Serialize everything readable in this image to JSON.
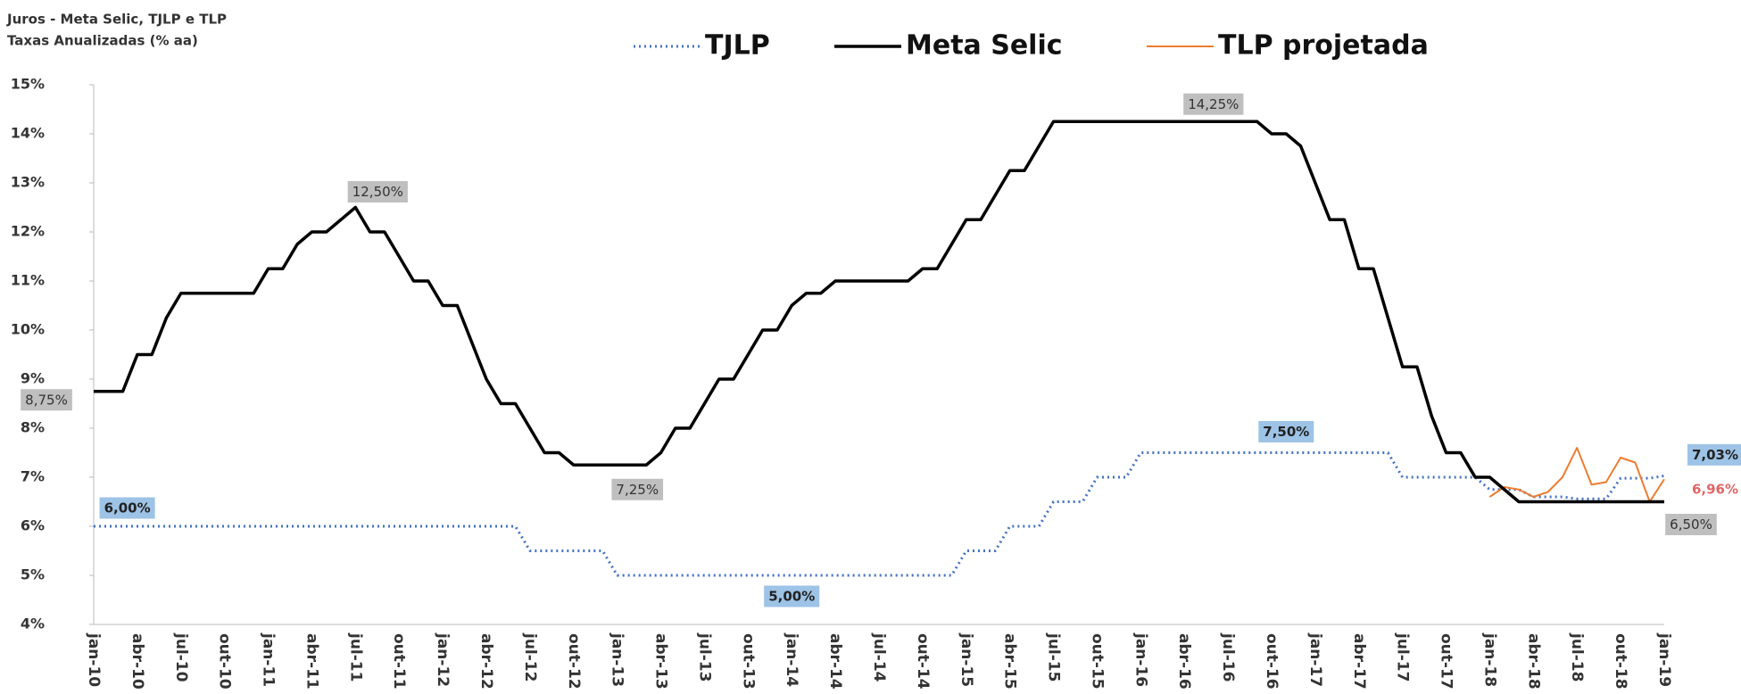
{
  "chart_data": {
    "type": "line",
    "title": "Juros - Meta Selic, TJLP e TLP",
    "subtitle": "Taxas Anualizadas (% aa)",
    "categories": [
      "jan-10",
      null,
      null,
      "abr-10",
      null,
      null,
      "jul-10",
      null,
      null,
      "out-10",
      null,
      null,
      "jan-11",
      null,
      null,
      "abr-11",
      null,
      null,
      "jul-11",
      null,
      null,
      "out-11",
      null,
      null,
      "jan-12",
      null,
      null,
      "abr-12",
      null,
      null,
      "jul-12",
      null,
      null,
      "out-12",
      null,
      null,
      "jan-13",
      null,
      null,
      "abr-13",
      null,
      null,
      "jul-13",
      null,
      null,
      "out-13",
      null,
      null,
      "jan-14",
      null,
      null,
      "abr-14",
      null,
      null,
      "jul-14",
      null,
      null,
      "out-14",
      null,
      null,
      "jan-15",
      null,
      null,
      "abr-15",
      null,
      null,
      "jul-15",
      null,
      null,
      "out-15",
      null,
      null,
      "jan-16",
      null,
      null,
      "abr-16",
      null,
      null,
      "jul-16",
      null,
      null,
      "out-16",
      null,
      null,
      "jan-17",
      null,
      null,
      "abr-17",
      null,
      null,
      "jul-17",
      null,
      null,
      "out-17",
      null,
      null,
      "jan-18",
      null,
      null,
      "abr-18",
      null,
      null,
      "jul-18",
      null,
      null,
      "out-18",
      null,
      null,
      "jan-19"
    ],
    "series": [
      {
        "name": "Meta Selic",
        "color": "#000000",
        "style": "solid",
        "values": [
          8.75,
          8.75,
          8.75,
          9.5,
          9.5,
          10.25,
          10.75,
          10.75,
          10.75,
          10.75,
          10.75,
          10.75,
          11.25,
          11.25,
          11.75,
          12,
          12,
          12.25,
          12.5,
          12,
          12,
          11.5,
          11,
          11,
          10.5,
          10.5,
          9.75,
          9,
          8.5,
          8.5,
          8,
          7.5,
          7.5,
          7.25,
          7.25,
          7.25,
          7.25,
          7.25,
          7.25,
          7.5,
          8,
          8,
          8.5,
          9,
          9,
          9.5,
          10,
          10,
          10.5,
          10.75,
          10.75,
          11,
          11,
          11,
          11,
          11,
          11,
          11.25,
          11.25,
          11.75,
          12.25,
          12.25,
          12.75,
          13.25,
          13.25,
          13.75,
          14.25,
          14.25,
          14.25,
          14.25,
          14.25,
          14.25,
          14.25,
          14.25,
          14.25,
          14.25,
          14.25,
          14.25,
          14.25,
          14.25,
          14.25,
          14,
          14,
          13.75,
          13,
          12.25,
          12.25,
          11.25,
          11.25,
          10.25,
          9.25,
          9.25,
          8.25,
          7.5,
          7.5,
          7,
          7,
          6.75,
          6.5,
          6.5,
          6.5,
          6.5,
          6.5,
          6.5,
          6.5,
          6.5,
          6.5,
          6.5,
          6.5
        ],
        "value_labels": [
          "8,75%",
          null,
          null,
          null,
          null,
          null,
          null,
          null,
          null,
          null,
          null,
          null,
          null,
          null,
          null,
          null,
          null,
          null,
          "12,50%",
          null,
          null,
          null,
          null,
          null,
          null,
          null,
          null,
          null,
          null,
          null,
          null,
          null,
          null,
          null,
          null,
          null,
          null,
          null,
          "7,25%",
          null,
          null,
          null,
          null,
          null,
          null,
          null,
          null,
          null,
          null,
          null,
          null,
          null,
          null,
          null,
          null,
          null,
          null,
          null,
          null,
          null,
          null,
          null,
          null,
          null,
          null,
          null,
          null,
          null,
          null,
          null,
          null,
          null,
          null,
          null,
          null,
          null,
          null,
          "14,25%",
          null,
          null,
          null,
          null,
          null,
          null,
          null,
          null,
          null,
          null,
          null,
          null,
          null,
          null,
          null,
          null,
          null,
          null,
          null,
          null,
          null,
          null,
          null,
          null,
          null,
          null,
          null,
          null,
          null,
          null,
          "6,50%"
        ]
      },
      {
        "name": "TJLP",
        "color": "#4472c4",
        "style": "dotted",
        "values": [
          6,
          6,
          6,
          6,
          6,
          6,
          6,
          6,
          6,
          6,
          6,
          6,
          6,
          6,
          6,
          6,
          6,
          6,
          6,
          6,
          6,
          6,
          6,
          6,
          6,
          6,
          6,
          6,
          6,
          6,
          5.5,
          5.5,
          5.5,
          5.5,
          5.5,
          5.5,
          5,
          5,
          5,
          5,
          5,
          5,
          5,
          5,
          5,
          5,
          5,
          5,
          5,
          5,
          5,
          5,
          5,
          5,
          5,
          5,
          5,
          5,
          5,
          5,
          5.5,
          5.5,
          5.5,
          6,
          6,
          6,
          6.5,
          6.5,
          6.5,
          7,
          7,
          7,
          7.5,
          7.5,
          7.5,
          7.5,
          7.5,
          7.5,
          7.5,
          7.5,
          7.5,
          7.5,
          7.5,
          7.5,
          7.5,
          7.5,
          7.5,
          7.5,
          7.5,
          7.5,
          7,
          7,
          7,
          7,
          7,
          7,
          6.75,
          6.75,
          6.75,
          6.6,
          6.6,
          6.6,
          6.56,
          6.56,
          6.56,
          6.98,
          6.98,
          6.98,
          7.03
        ],
        "value_labels": [
          null,
          null,
          "6,00%",
          null,
          null,
          null,
          null,
          null,
          null,
          null,
          null,
          null,
          null,
          null,
          null,
          null,
          null,
          null,
          null,
          null,
          null,
          null,
          null,
          null,
          null,
          null,
          null,
          null,
          null,
          null,
          null,
          null,
          null,
          null,
          null,
          null,
          null,
          null,
          null,
          null,
          null,
          null,
          null,
          null,
          null,
          null,
          null,
          null,
          "5,00%",
          null,
          null,
          null,
          null,
          null,
          null,
          null,
          null,
          null,
          null,
          null,
          null,
          null,
          null,
          null,
          null,
          null,
          null,
          null,
          null,
          null,
          null,
          null,
          null,
          null,
          null,
          null,
          null,
          null,
          null,
          null,
          null,
          null,
          "7,50%",
          null,
          null,
          null,
          null,
          null,
          null,
          null,
          null,
          null,
          null,
          null,
          null,
          null,
          null,
          null,
          null,
          null,
          null,
          null,
          null,
          null,
          null,
          null,
          null,
          null,
          "7,03%"
        ]
      },
      {
        "name": "TLP projetada",
        "color": "#ed7d31",
        "style": "thin",
        "values": [
          null,
          null,
          null,
          null,
          null,
          null,
          null,
          null,
          null,
          null,
          null,
          null,
          null,
          null,
          null,
          null,
          null,
          null,
          null,
          null,
          null,
          null,
          null,
          null,
          null,
          null,
          null,
          null,
          null,
          null,
          null,
          null,
          null,
          null,
          null,
          null,
          null,
          null,
          null,
          null,
          null,
          null,
          null,
          null,
          null,
          null,
          null,
          null,
          null,
          null,
          null,
          null,
          null,
          null,
          null,
          null,
          null,
          null,
          null,
          null,
          null,
          null,
          null,
          null,
          null,
          null,
          null,
          null,
          null,
          null,
          null,
          null,
          null,
          null,
          null,
          null,
          null,
          null,
          null,
          null,
          null,
          null,
          null,
          null,
          null,
          null,
          null,
          null,
          null,
          null,
          null,
          null,
          null,
          null,
          null,
          null,
          6.6,
          6.8,
          6.75,
          6.6,
          6.7,
          7.0,
          7.6,
          6.85,
          6.9,
          7.4,
          7.3,
          6.5,
          6.96
        ],
        "value_labels": [
          null,
          null,
          null,
          null,
          null,
          null,
          null,
          null,
          null,
          null,
          null,
          null,
          null,
          null,
          null,
          null,
          null,
          null,
          null,
          null,
          null,
          null,
          null,
          null,
          null,
          null,
          null,
          null,
          null,
          null,
          null,
          null,
          null,
          null,
          null,
          null,
          null,
          null,
          null,
          null,
          null,
          null,
          null,
          null,
          null,
          null,
          null,
          null,
          null,
          null,
          null,
          null,
          null,
          null,
          null,
          null,
          null,
          null,
          null,
          null,
          null,
          null,
          null,
          null,
          null,
          null,
          null,
          null,
          null,
          null,
          null,
          null,
          null,
          null,
          null,
          null,
          null,
          null,
          null,
          null,
          null,
          null,
          null,
          null,
          null,
          null,
          null,
          null,
          null,
          null,
          null,
          null,
          null,
          null,
          null,
          null,
          null,
          null,
          null,
          null,
          null,
          null,
          null,
          null,
          null,
          null,
          null,
          null,
          "6,96%"
        ]
      }
    ],
    "legend_order": [
      1,
      0,
      2
    ],
    "ylim": [
      4,
      15
    ],
    "yticks": [
      {
        "value": 4,
        "label": "4%"
      },
      {
        "value": 5,
        "label": "5%"
      },
      {
        "value": 6,
        "label": "6%"
      },
      {
        "value": 7,
        "label": "7%"
      },
      {
        "value": 8,
        "label": "8%"
      },
      {
        "value": 9,
        "label": "9%"
      },
      {
        "value": 10,
        "label": "10%"
      },
      {
        "value": 11,
        "label": "11%"
      },
      {
        "value": 12,
        "label": "12%"
      },
      {
        "value": 13,
        "label": "13%"
      },
      {
        "value": 14,
        "label": "14%"
      },
      {
        "value": 15,
        "label": "15%"
      }
    ],
    "grid": false
  }
}
